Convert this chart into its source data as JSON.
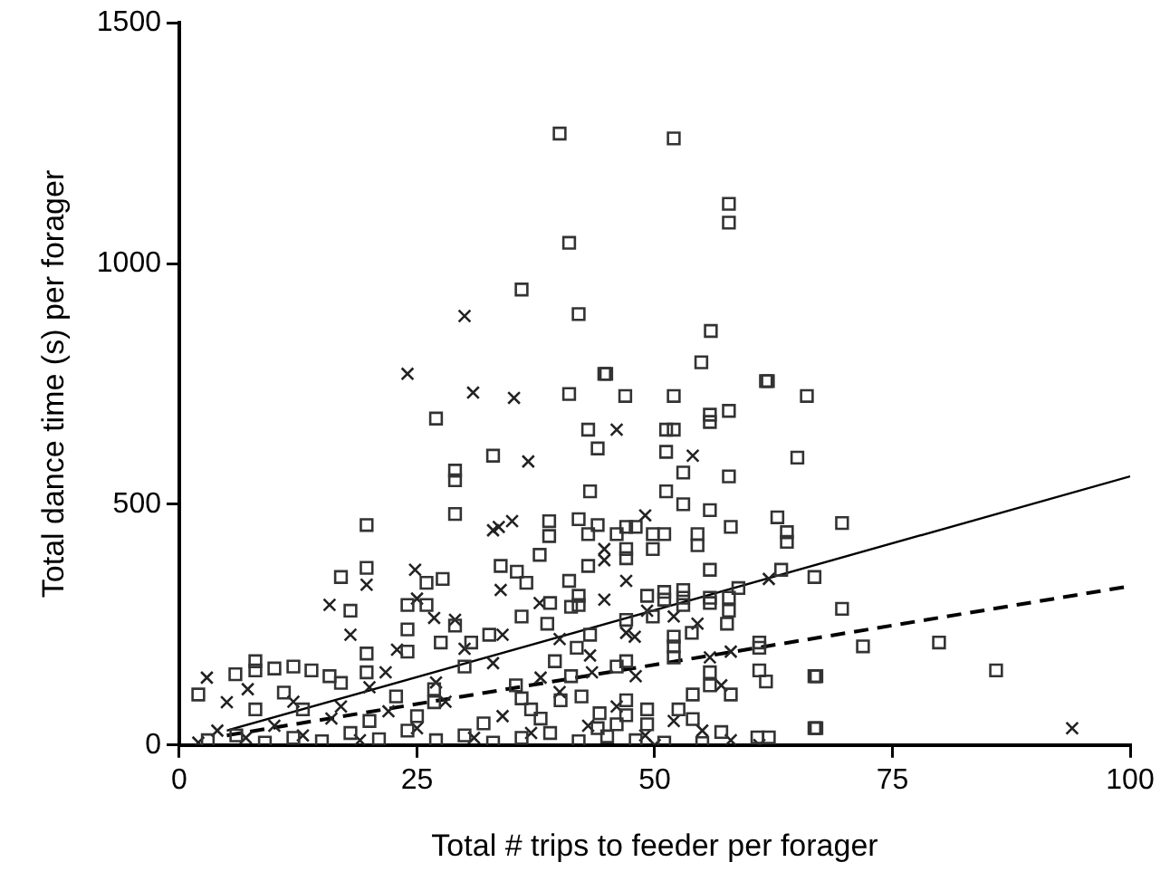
{
  "chart_data": {
    "type": "scatter",
    "xlabel": "Total # trips to feeder per forager",
    "ylabel": "Total dance time (s) per forager",
    "xlim": [
      0,
      100
    ],
    "xticks": [
      0,
      25,
      50,
      75,
      100
    ],
    "ylim": [
      0,
      1500
    ],
    "yticks": [
      0,
      500,
      1000,
      1500
    ],
    "grid": false,
    "legend": false,
    "series": [
      {
        "marker": "square",
        "color": "#333333",
        "x": [
          40,
          52,
          41,
          36,
          42,
          44.7,
          57.8,
          57.8,
          55.9,
          54.9,
          61.7,
          27,
          33,
          29,
          29,
          29,
          19.7,
          19.7,
          17,
          18,
          19.7,
          8,
          8,
          5.9,
          10,
          12,
          13.9,
          15.8,
          17,
          2,
          8,
          11,
          13,
          27.7,
          26,
          24,
          26,
          24,
          24,
          29,
          27.5,
          30.7,
          32.6,
          30,
          19.7,
          22.8,
          26.8,
          26.8,
          44.9,
          41,
          46.9,
          52,
          61.9,
          66,
          57.8,
          55.8,
          55.8,
          43,
          51.2,
          52,
          44,
          51.2,
          65,
          53,
          57.8,
          43.2,
          51.2,
          53,
          55.8,
          62.9,
          63.9,
          63.9,
          38.9,
          38.9,
          42,
          44,
          47,
          48,
          49.8,
          49.8,
          51,
          43,
          54.5,
          54.5,
          58,
          46,
          47,
          47,
          37.9,
          43,
          55.8,
          66.8,
          63.3,
          58.8,
          36.5,
          35.5,
          33.8,
          39,
          41,
          42,
          42,
          49.2,
          51,
          51,
          53,
          53,
          53,
          55.8,
          55.8,
          57.8,
          57.8,
          49.8,
          57.6,
          53.9,
          47,
          41.2,
          36,
          38.7,
          52,
          52,
          52,
          61,
          61,
          61,
          66.8,
          61.7,
          55.8,
          55.8,
          58,
          54,
          52.5,
          54,
          66.8,
          60.8,
          62,
          57,
          55,
          49.2,
          49.2,
          43.2,
          41.8,
          39.5,
          47,
          46,
          41.2,
          40.1,
          42.3,
          47,
          47,
          44.2,
          46,
          36,
          37,
          35.4,
          69.7,
          69.7,
          71.9,
          79.9,
          85.9,
          67,
          67,
          3,
          6,
          9,
          12,
          15,
          18,
          21,
          24,
          27,
          30,
          33,
          36,
          39,
          42,
          45,
          48,
          51,
          20,
          25,
          32,
          38,
          44
        ],
        "values": [
          1270,
          1260,
          1043,
          946,
          895,
          771,
          1124,
          1085,
          860,
          795,
          756,
          678,
          601,
          570,
          550,
          480,
          457,
          368,
          349,
          279,
          190,
          174,
          155,
          147,
          159,
          163,
          155,
          143,
          129,
          105,
          74,
          109,
          74,
          345,
          337,
          291,
          291,
          240,
          194,
          248,
          213,
          213,
          229,
          163,
          151,
          101,
          89,
          116,
          771,
          729,
          725,
          725,
          756,
          725,
          694,
          686,
          671,
          655,
          655,
          655,
          616,
          609,
          597,
          566,
          558,
          527,
          527,
          500,
          488,
          473,
          442,
          422,
          465,
          434,
          469,
          457,
          453,
          453,
          438,
          407,
          438,
          438,
          438,
          415,
          453,
          438,
          407,
          388,
          395,
          372,
          364,
          349,
          364,
          326,
          337,
          360,
          372,
          295,
          341,
          310,
          291,
          310,
          318,
          302,
          322,
          306,
          291,
          295,
          306,
          306,
          279,
          267,
          252,
          233,
          260,
          287,
          267,
          252,
          225,
          205,
          182,
          213,
          202,
          155,
          143,
          132,
          151,
          124,
          105,
          105,
          74,
          54,
          35,
          16,
          16,
          27,
          4,
          43,
          74,
          229,
          202,
          174,
          174,
          163,
          143,
          93,
          101,
          93,
          62,
          66,
          43,
          97,
          74,
          124,
          461,
          283,
          205,
          213,
          155,
          143,
          35,
          10,
          20,
          5,
          15,
          8,
          25,
          12,
          30,
          10,
          20,
          5,
          15,
          25,
          8,
          18,
          10,
          5,
          50,
          60,
          45,
          55,
          35
        ]
      },
      {
        "marker": "cross",
        "color": "#222222",
        "x": [
          30,
          24,
          30.9,
          33,
          19.7,
          15.8,
          18,
          2.9,
          5,
          7.2,
          24.8,
          25,
          26.8,
          22.9,
          29,
          21.7,
          35.2,
          46,
          54,
          36.7,
          49,
          35,
          33.6,
          44.7,
          44.7,
          47,
          62,
          33.8,
          37.9,
          44.7,
          49.2,
          52,
          54.5,
          47,
          47.9,
          34,
          58,
          55.8,
          57,
          61,
          50,
          43.2,
          43.4,
          48,
          93.9,
          2,
          4,
          7,
          10,
          13,
          16,
          19,
          22,
          25,
          28,
          31,
          34,
          37,
          40,
          43,
          46,
          49,
          52,
          55,
          58,
          12,
          17,
          27,
          33,
          38,
          20,
          30,
          40
        ],
        "values": [
          891,
          771,
          732,
          446,
          333,
          291,
          229,
          140,
          89,
          116,
          364,
          304,
          264,
          198,
          260,
          151,
          721,
          655,
          601,
          589,
          477,
          465,
          453,
          407,
          384,
          341,
          345,
          322,
          295,
          302,
          279,
          267,
          252,
          233,
          225,
          229,
          194,
          182,
          124,
          0,
          0,
          186,
          151,
          143,
          35,
          5,
          30,
          15,
          40,
          20,
          55,
          10,
          70,
          35,
          90,
          15,
          60,
          25,
          110,
          40,
          80,
          20,
          50,
          30,
          10,
          90,
          80,
          130,
          170,
          140,
          120,
          200,
          220
        ]
      },
      {
        "type": "line",
        "marker": "none",
        "line_style": "solid",
        "color": "#000000",
        "x": [
          5,
          100
        ],
        "values": [
          30,
          558
        ]
      },
      {
        "type": "line",
        "marker": "none",
        "line_style": "dashed",
        "color": "#000000",
        "x": [
          5,
          100
        ],
        "values": [
          20,
          330
        ]
      }
    ]
  }
}
